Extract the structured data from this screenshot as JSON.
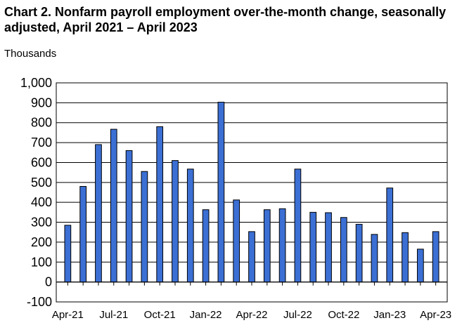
{
  "chart_data": {
    "type": "bar",
    "title": "Chart 2. Nonfarm payroll employment over-the-month change, seasonally adjusted, April 2021 – April 2023",
    "ylabel": "Thousands",
    "xlabel": "",
    "ylim": [
      -100,
      1000
    ],
    "y_ticks": [
      -100,
      0,
      100,
      200,
      300,
      400,
      500,
      600,
      700,
      800,
      900,
      1000
    ],
    "y_tick_labels": [
      "-100",
      "0",
      "100",
      "200",
      "300",
      "400",
      "500",
      "600",
      "700",
      "800",
      "900",
      "1,000"
    ],
    "categories": [
      "Apr-21",
      "May-21",
      "Jun-21",
      "Jul-21",
      "Aug-21",
      "Sep-21",
      "Oct-21",
      "Nov-21",
      "Dec-21",
      "Jan-22",
      "Feb-22",
      "Mar-22",
      "Apr-22",
      "May-22",
      "Jun-22",
      "Jul-22",
      "Aug-22",
      "Sep-22",
      "Oct-22",
      "Nov-22",
      "Dec-22",
      "Jan-23",
      "Feb-23",
      "Mar-23",
      "Apr-23"
    ],
    "x_tick_labels": [
      "Apr-21",
      "Jul-21",
      "Oct-21",
      "Jan-22",
      "Apr-22",
      "Jul-22",
      "Oct-22",
      "Jan-23",
      "Apr-23"
    ],
    "values": [
      285,
      480,
      690,
      767,
      660,
      555,
      780,
      610,
      567,
      363,
      903,
      412,
      253,
      363,
      368,
      567,
      350,
      348,
      324,
      290,
      239,
      472,
      248,
      165,
      253
    ],
    "grid": true,
    "legend": "none",
    "bar_color": "#3B6FD4",
    "bar_stroke": "#000000"
  }
}
